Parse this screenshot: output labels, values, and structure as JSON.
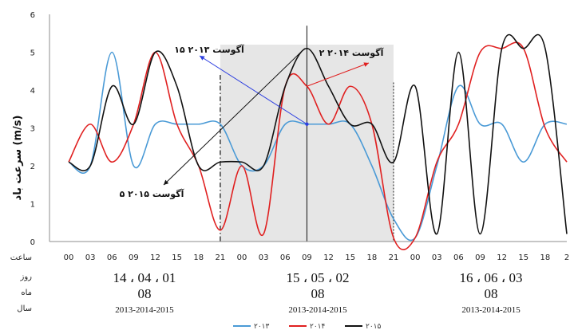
{
  "chart_data": {
    "type": "line",
    "ylabel": "سرعت باد (m/s)",
    "ylim": [
      0,
      6
    ],
    "yticks": [
      "0",
      "1",
      "2",
      "3",
      "4",
      "5",
      "6"
    ],
    "x_row_label": "ساعت",
    "x_ticks": [
      "00",
      "03",
      "06",
      "09",
      "12",
      "15",
      "18",
      "21",
      "00",
      "03",
      "06",
      "09",
      "12",
      "15",
      "18",
      "21",
      "00",
      "03",
      "06",
      "09",
      "12",
      "15",
      "18",
      "2"
    ],
    "rows": [
      {
        "label": "روز",
        "groups": [
          "14 ، 04 ، 01",
          "15 ، 05 ، 02",
          "16 ، 06 ، 03"
        ]
      },
      {
        "label": "ماه",
        "groups": [
          "08",
          "08",
          "08"
        ]
      },
      {
        "label": "سال",
        "groups": [
          "2013-2014-2015",
          "2013-2014-2015",
          "2013-2014-2015"
        ]
      }
    ],
    "grid": false,
    "shaded_period": [
      7,
      15
    ],
    "series": [
      {
        "name": "۲۰۱۳",
        "color": "#4a9ad6",
        "values": [
          2.1,
          2.0,
          5.0,
          2.0,
          3.1,
          3.1,
          3.1,
          3.1,
          2.0,
          2.0,
          3.1,
          3.1,
          3.1,
          3.1,
          2.0,
          0.6,
          0.1,
          2.0,
          4.1,
          3.1,
          3.1,
          2.1,
          3.1,
          3.1
        ]
      },
      {
        "name": "۲۰۱۴",
        "color": "#e02020",
        "values": [
          2.1,
          3.1,
          2.1,
          3.1,
          5.0,
          3.1,
          2.0,
          0.3,
          2.0,
          0.2,
          4.1,
          4.1,
          3.1,
          4.1,
          3.1,
          0.1,
          0.1,
          2.1,
          3.1,
          5.0,
          5.1,
          5.1,
          3.0,
          2.1
        ]
      },
      {
        "name": "۲۰۱۵",
        "color": "#111111",
        "values": [
          2.1,
          2.0,
          4.1,
          3.1,
          5.0,
          4.1,
          2.0,
          2.1,
          2.1,
          2.0,
          4.1,
          5.1,
          4.1,
          3.1,
          3.1,
          2.1,
          4.1,
          0.2,
          5.0,
          0.2,
          5.1,
          5.1,
          5.1,
          0.2
        ]
      }
    ],
    "annotations": [
      {
        "label": "۱۵ آگوست ۲۰۱۳",
        "color": "#2d3fe0"
      },
      {
        "label": "۲ آگوست ۲۰۱۴",
        "color": "#e02020"
      },
      {
        "label": "۵ آگوست ۲۰۱۵",
        "color": "#111111"
      }
    ],
    "legend_position": "bottom-center"
  }
}
